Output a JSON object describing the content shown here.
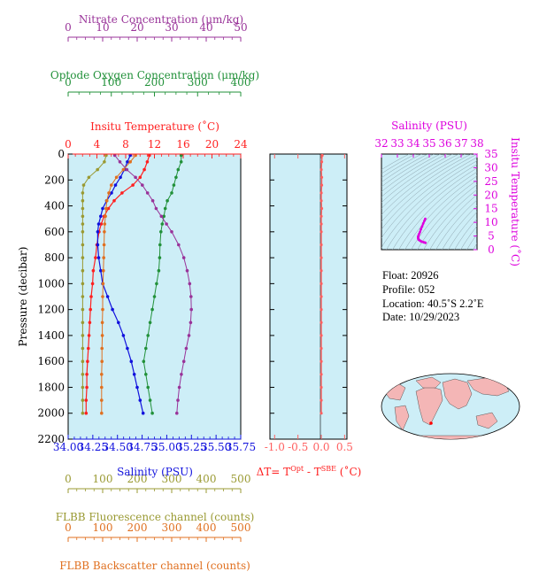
{
  "colors": {
    "nitrate": "#993399",
    "oxygen": "#22913a",
    "temperature": "#ff2020",
    "salinity": "#1111dd",
    "fluorescence": "#9a9a33",
    "backscatter": "#e07020",
    "delta_t": "#ff6060",
    "ts_axis": "#dd00dd",
    "panel_bg": "#cdeef7"
  },
  "axes": {
    "nitrate": {
      "label": "Nitrate Concentration (μm/kg)",
      "ticks": [
        "0",
        "10",
        "20",
        "30",
        "40",
        "50"
      ]
    },
    "oxygen": {
      "label": "Optode Oxygen Concentration (μm/kg)",
      "ticks": [
        "0",
        "100",
        "200",
        "300",
        "400"
      ]
    },
    "temperature": {
      "label": "Insitu Temperature (˚C)",
      "ticks": [
        "0",
        "4",
        "8",
        "12",
        "16",
        "20",
        "24"
      ]
    },
    "pressure": {
      "label": "Pressure (decibar)",
      "ticks": [
        "0",
        "200",
        "400",
        "600",
        "800",
        "1000",
        "1200",
        "1400",
        "1600",
        "1800",
        "2000",
        "2200"
      ]
    },
    "salinity": {
      "label": "Salinity (PSU)",
      "ticks": [
        "34.00",
        "34.25",
        "34.50",
        "34.75",
        "35.00",
        "35.25",
        "35.50",
        "35.75"
      ]
    },
    "delta_t": {
      "label_prefix": "ΔT= T",
      "sup1": "Opt",
      "mid": " - T",
      "sup2": "SBE",
      "suffix": " (˚C)",
      "ticks": [
        "-1.0",
        "-0.5",
        "0.0",
        "0.5"
      ]
    },
    "fluorescence": {
      "label": "FLBB Fluorescence channel (counts)",
      "ticks": [
        "0",
        "100",
        "200",
        "300",
        "400",
        "500"
      ]
    },
    "backscatter": {
      "label": "FLBB Backscatter channel (counts)",
      "ticks": [
        "0",
        "100",
        "200",
        "300",
        "400",
        "500"
      ]
    },
    "ts_salinity": {
      "label": "Salinity (PSU)",
      "ticks": [
        "32",
        "33",
        "34",
        "35",
        "36",
        "37",
        "38"
      ]
    },
    "ts_temperature": {
      "label": "Insitu Temperature (˚C)",
      "ticks": [
        "0",
        "5",
        "10",
        "15",
        "20",
        "25",
        "30",
        "35"
      ]
    }
  },
  "info": {
    "float": "Float:  20926",
    "profile": "Profile:  052",
    "location": "Location:  40.5˚S   2.2˚E",
    "date": "Date:  10/29/2023"
  },
  "chart_data": [
    {
      "type": "line",
      "ylabel": "Pressure (decibar)",
      "ylim": [
        2200,
        0
      ],
      "grid": false,
      "series": [
        {
          "name": "Insitu Temperature (˚C)",
          "xlim": [
            0,
            24
          ],
          "x": [
            11.3,
            11.0,
            10.6,
            10.0,
            9.0,
            7.5,
            6.4,
            5.6,
            5.0,
            4.6,
            4.3,
            4.0,
            3.8,
            3.5,
            3.4,
            3.2,
            3.1,
            3.0,
            2.9,
            2.8,
            2.7,
            2.6,
            2.6,
            2.5,
            2.5
          ],
          "y": [
            10,
            60,
            120,
            180,
            240,
            300,
            360,
            420,
            480,
            540,
            600,
            700,
            800,
            900,
            1000,
            1100,
            1200,
            1300,
            1400,
            1500,
            1600,
            1700,
            1800,
            1900,
            2000
          ]
        },
        {
          "name": "Salinity (PSU)",
          "xlim": [
            34.0,
            35.75
          ],
          "x": [
            34.63,
            34.6,
            34.57,
            34.53,
            34.48,
            34.44,
            34.39,
            34.35,
            34.33,
            34.31,
            34.3,
            34.3,
            34.31,
            34.33,
            34.35,
            34.4,
            34.45,
            34.51,
            34.56,
            34.6,
            34.64,
            34.67,
            34.7,
            34.73,
            34.76
          ],
          "y": [
            10,
            60,
            120,
            180,
            240,
            300,
            360,
            420,
            480,
            540,
            600,
            700,
            800,
            900,
            1000,
            1100,
            1200,
            1300,
            1400,
            1500,
            1600,
            1700,
            1800,
            1900,
            2000
          ]
        },
        {
          "name": "Optode Oxygen Concentration (μm/kg)",
          "xlim": [
            0,
            400
          ],
          "x": [
            262,
            262,
            255,
            250,
            245,
            240,
            230,
            225,
            222,
            218,
            215,
            213,
            212,
            210,
            205,
            200,
            195,
            190,
            185,
            180,
            175,
            180,
            185,
            190,
            195
          ],
          "y": [
            10,
            60,
            120,
            180,
            240,
            300,
            360,
            420,
            480,
            540,
            600,
            700,
            800,
            900,
            1000,
            1100,
            1200,
            1300,
            1400,
            1500,
            1600,
            1700,
            1800,
            1900,
            2000
          ]
        },
        {
          "name": "Nitrate Concentration (μm/kg)",
          "xlim": [
            0,
            50
          ],
          "x": [
            13.5,
            15.0,
            17.0,
            19.5,
            21.5,
            23.0,
            24.5,
            25.5,
            27.0,
            28.5,
            30.0,
            32.0,
            33.5,
            34.5,
            35.2,
            35.6,
            35.7,
            35.5,
            35.0,
            34.2,
            33.5,
            32.8,
            32.2,
            31.8,
            31.5
          ],
          "y": [
            10,
            60,
            120,
            180,
            240,
            300,
            360,
            420,
            480,
            540,
            600,
            700,
            800,
            900,
            1000,
            1100,
            1200,
            1300,
            1400,
            1500,
            1600,
            1700,
            1800,
            1900,
            2000
          ]
        },
        {
          "name": "FLBB Fluorescence channel (counts)",
          "xlim": [
            0,
            500
          ],
          "x": [
            110,
            105,
            85,
            60,
            45,
            42,
            42,
            42,
            42,
            42,
            42,
            42,
            42,
            42,
            42,
            42,
            42,
            42,
            42,
            42,
            42,
            42,
            42,
            42,
            42
          ],
          "y": [
            10,
            60,
            120,
            180,
            240,
            300,
            360,
            420,
            480,
            540,
            600,
            700,
            800,
            900,
            1000,
            1100,
            1200,
            1300,
            1400,
            1500,
            1600,
            1700,
            1800,
            1900,
            2000
          ]
        },
        {
          "name": "FLBB Backscatter channel (counts)",
          "xlim": [
            0,
            500
          ],
          "x": [
            195,
            180,
            160,
            140,
            125,
            118,
            112,
            110,
            108,
            106,
            105,
            104,
            103,
            102,
            101,
            100,
            100,
            99,
            99,
            98,
            98,
            97,
            97,
            97,
            97
          ],
          "y": [
            10,
            60,
            120,
            180,
            240,
            300,
            360,
            420,
            480,
            540,
            600,
            700,
            800,
            900,
            1000,
            1100,
            1200,
            1300,
            1400,
            1500,
            1600,
            1700,
            1800,
            1900,
            2000
          ]
        }
      ]
    },
    {
      "type": "line",
      "xlabel": "ΔT= TOpt - TSBE (˚C)",
      "xlim": [
        -1.1,
        0.55
      ],
      "ylim": [
        2200,
        0
      ],
      "series": [
        {
          "name": "ΔT",
          "x": [
            0.02,
            0.01,
            0.0,
            0.01,
            0.01,
            0.0,
            0.0,
            0.01,
            0.0,
            0.0,
            0.0,
            0.0,
            0.0,
            0.0,
            0.0,
            0.0,
            0.0,
            0.0,
            0.0,
            0.0,
            0.0,
            0.0,
            0.0,
            0.0,
            0.0
          ],
          "y": [
            10,
            60,
            120,
            180,
            240,
            300,
            360,
            420,
            480,
            540,
            600,
            700,
            800,
            900,
            1000,
            1100,
            1200,
            1300,
            1400,
            1500,
            1600,
            1700,
            1800,
            1900,
            2000
          ]
        }
      ]
    },
    {
      "type": "scatter",
      "xlabel": "Salinity (PSU)",
      "ylabel": "Insitu Temperature (˚C)",
      "xlim": [
        32,
        38
      ],
      "ylim": [
        0,
        35
      ],
      "series": [
        {
          "x": [
            34.75,
            34.7,
            34.62,
            34.55,
            34.48,
            34.41,
            34.35,
            34.31,
            34.3,
            34.3,
            34.31,
            34.33,
            34.35,
            34.4,
            34.45,
            34.5,
            34.58,
            34.66,
            34.74,
            34.76
          ],
          "y": [
            11.3,
            10.6,
            9.6,
            8.5,
            7.5,
            6.4,
            5.6,
            5.0,
            4.6,
            4.3,
            4.0,
            3.8,
            3.6,
            3.4,
            3.2,
            3.0,
            2.9,
            2.7,
            2.6,
            2.5
          ]
        }
      ]
    }
  ]
}
